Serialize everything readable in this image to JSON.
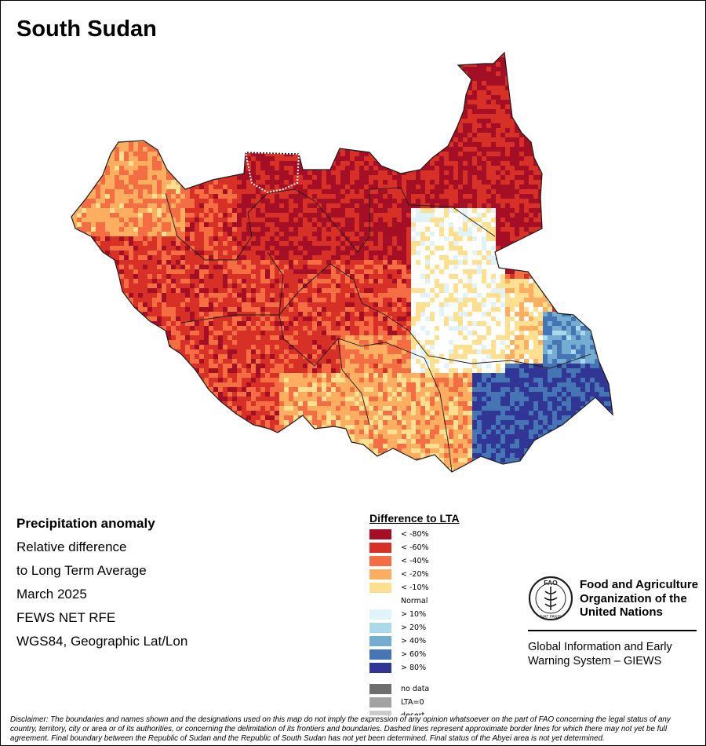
{
  "map": {
    "title": "South Sudan",
    "colors": {
      "border_line": "#1a1a1a",
      "disputed_outline": "#ffffff",
      "background": "#ffffff"
    }
  },
  "info": {
    "heading": "Precipitation anomaly",
    "lines": [
      "Relative difference",
      "to Long Term Average",
      "March 2025",
      "FEWS NET RFE",
      "WGS84, Geographic Lat/Lon"
    ]
  },
  "legend": {
    "title": "Difference to LTA",
    "classes": [
      {
        "label": "< -80%",
        "color": "#a50f25"
      },
      {
        "label": "< -60%",
        "color": "#d73027"
      },
      {
        "label": "< -40%",
        "color": "#f46d43"
      },
      {
        "label": "< -20%",
        "color": "#fdae61"
      },
      {
        "label": "< -10%",
        "color": "#fee090"
      },
      {
        "label": "Normal",
        "color": "#ffffff"
      },
      {
        "label": "> 10%",
        "color": "#e0f3f8"
      },
      {
        "label": "> 20%",
        "color": "#abd9e9"
      },
      {
        "label": "> 40%",
        "color": "#74add1"
      },
      {
        "label": "> 60%",
        "color": "#4575b4"
      },
      {
        "label": "> 80%",
        "color": "#313695"
      }
    ],
    "extra": [
      {
        "label": "no data",
        "color": "#6e6e6e"
      },
      {
        "label": "LTA=0",
        "color": "#a3a3a3"
      },
      {
        "label": "desert",
        "color": "#cccccc"
      }
    ]
  },
  "logo": {
    "org_name": "Food and Agriculture Organization of the United Nations",
    "emblem_text": "FAO",
    "motto": "FIAT PANIS",
    "system_name": "Global Information and Early Warning System – GIEWS",
    "color": "#1e1e1e"
  },
  "disclaimer": "Disclaimer: The boundaries and names shown and the designations used on this map do not imply the expression of any opinion whatsoever on the part of FAO concerning the legal status of any country, territory, city or area or of its authorities, or concerning the delimitation of its frontiers and boundaries. Dashed lines represent approximate border lines for which there may not yet be full agreement.  Final boundary between the Republic of Sudan and the Republic of South Sudan has not yet been determined. Final status of the Abyei area is not yet determined."
}
